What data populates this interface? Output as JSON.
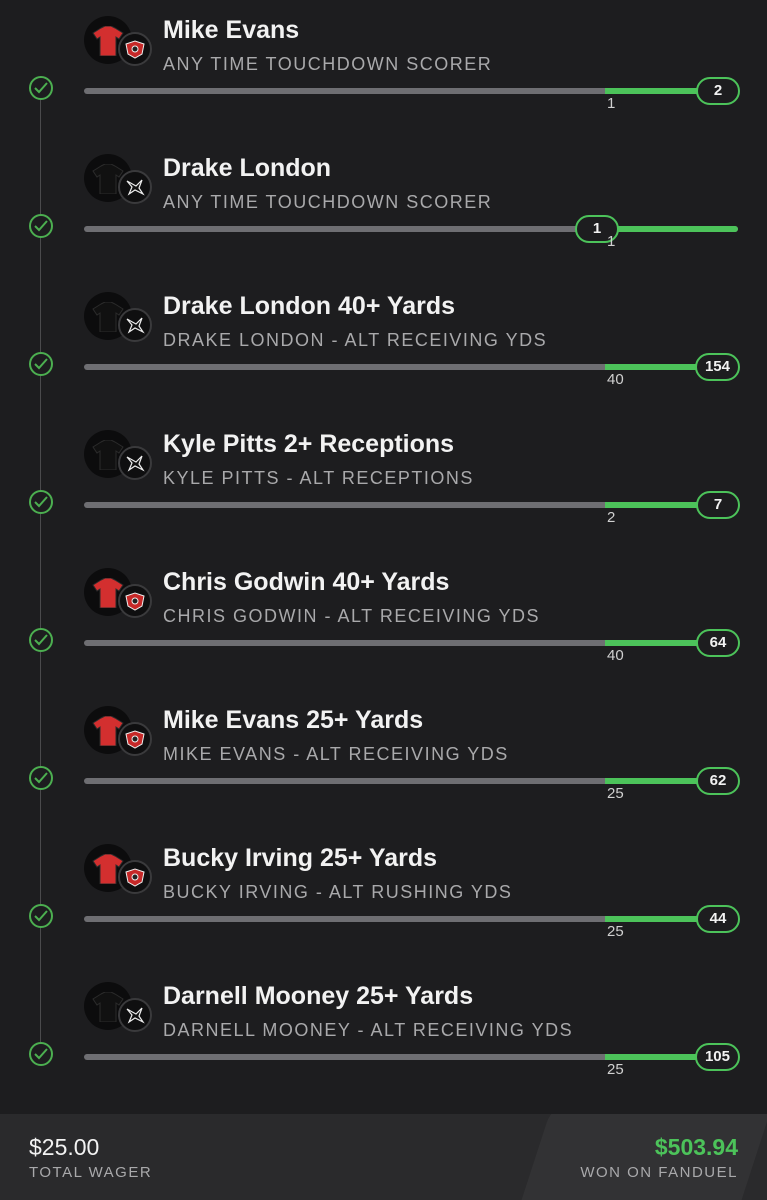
{
  "legs": [
    {
      "title": "Mike Evans",
      "subtitle": "ANY TIME TOUCHDOWN SCORER",
      "target": "1",
      "result": "2",
      "team": "buccaneers",
      "jersey_color": "#d32f2f"
    },
    {
      "title": "Drake London",
      "subtitle": "ANY TIME TOUCHDOWN SCORER",
      "target": "1",
      "result": "1",
      "team": "falcons",
      "jersey_color": "#111111"
    },
    {
      "title": "Drake London 40+ Yards",
      "subtitle": "DRAKE LONDON - ALT RECEIVING YDS",
      "target": "40",
      "result": "154",
      "team": "falcons",
      "jersey_color": "#111111"
    },
    {
      "title": "Kyle Pitts 2+ Receptions",
      "subtitle": "KYLE PITTS - ALT RECEPTIONS",
      "target": "2",
      "result": "7",
      "team": "falcons",
      "jersey_color": "#111111"
    },
    {
      "title": "Chris Godwin 40+ Yards",
      "subtitle": "CHRIS GODWIN - ALT RECEIVING YDS",
      "target": "40",
      "result": "64",
      "team": "buccaneers",
      "jersey_color": "#d32f2f"
    },
    {
      "title": "Mike Evans 25+ Yards",
      "subtitle": "MIKE EVANS - ALT RECEIVING YDS",
      "target": "25",
      "result": "62",
      "team": "buccaneers",
      "jersey_color": "#d32f2f"
    },
    {
      "title": "Bucky Irving 25+ Yards",
      "subtitle": "BUCKY IRVING - ALT RUSHING YDS",
      "target": "25",
      "result": "44",
      "team": "buccaneers",
      "jersey_color": "#d32f2f"
    },
    {
      "title": "Darnell Mooney 25+ Yards",
      "subtitle": "DARNELL MOONEY - ALT RECEIVING YDS",
      "target": "25",
      "result": "105",
      "team": "falcons",
      "jersey_color": "#111111"
    }
  ],
  "footer": {
    "wager_amount": "$25.00",
    "wager_label": "TOTAL WAGER",
    "won_amount": "$503.94",
    "won_label": "WON ON FANDUEL"
  },
  "colors": {
    "accent": "#4cc35a",
    "track": "#6e6e72",
    "bg": "#1d1d1f"
  }
}
